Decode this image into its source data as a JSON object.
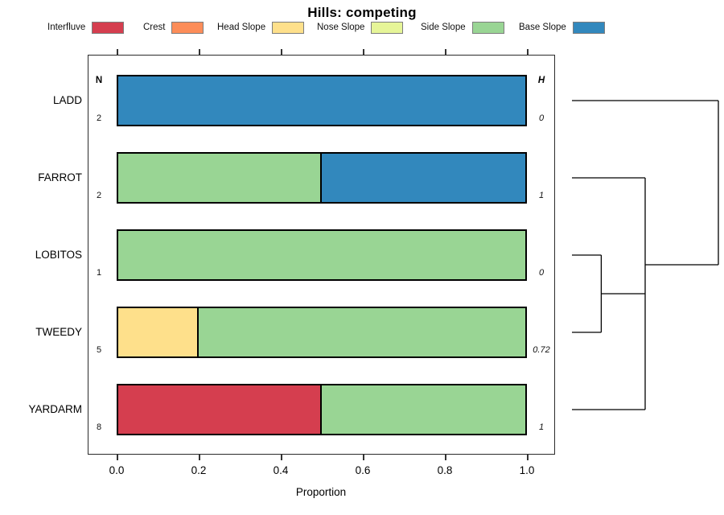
{
  "title": "Hills: competing",
  "columns": {
    "n_header": "N",
    "h_header": "H"
  },
  "chart_data": {
    "type": "bar",
    "subtype": "stacked-horizontal-proportion",
    "title": "Hills: competing",
    "xlabel": "Proportion",
    "xlim": [
      0,
      1
    ],
    "xticks": [
      "0.0",
      "0.2",
      "0.4",
      "0.6",
      "0.8",
      "1.0"
    ],
    "grid": false,
    "legend_position": "top",
    "categories": [
      "Interfluve",
      "Crest",
      "Head Slope",
      "Nose Slope",
      "Side Slope",
      "Base Slope"
    ],
    "palette": {
      "Interfluve": "#D53E4F",
      "Crest": "#FC8D59",
      "Head Slope": "#FEE08B",
      "Nose Slope": "#E6F598",
      "Side Slope": "#99D594",
      "Base Slope": "#3288BD"
    },
    "rows": [
      {
        "label": "LADD",
        "N": "2",
        "H": "0",
        "segments": [
          {
            "category": "Base Slope",
            "proportion": 1.0
          }
        ]
      },
      {
        "label": "FARROT",
        "N": "2",
        "H": "1",
        "segments": [
          {
            "category": "Side Slope",
            "proportion": 0.5
          },
          {
            "category": "Base Slope",
            "proportion": 0.5
          }
        ]
      },
      {
        "label": "LOBITOS",
        "N": "1",
        "H": "0",
        "segments": [
          {
            "category": "Side Slope",
            "proportion": 1.0
          }
        ]
      },
      {
        "label": "TWEEDY",
        "N": "5",
        "H": "0.72",
        "segments": [
          {
            "category": "Head Slope",
            "proportion": 0.2
          },
          {
            "category": "Side Slope",
            "proportion": 0.8
          }
        ]
      },
      {
        "label": "YARDARM",
        "N": "8",
        "H": "1",
        "segments": [
          {
            "category": "Interfluve",
            "proportion": 0.5
          },
          {
            "category": "Side Slope",
            "proportion": 0.5
          }
        ]
      }
    ],
    "dendrogram": {
      "position": "right-margin",
      "leaf_order": [
        "LADD",
        "FARROT",
        "LOBITOS",
        "TWEEDY",
        "YARDARM"
      ],
      "merges": [
        {
          "a": "LOBITOS",
          "b": "TWEEDY",
          "height": 0.2
        },
        {
          "a": "node0",
          "b": "YARDARM",
          "height": 0.5
        },
        {
          "a": "FARROT",
          "b": "node1",
          "height": 0.5
        },
        {
          "a": "LADD",
          "b": "node2",
          "height": 1.0
        }
      ]
    }
  }
}
